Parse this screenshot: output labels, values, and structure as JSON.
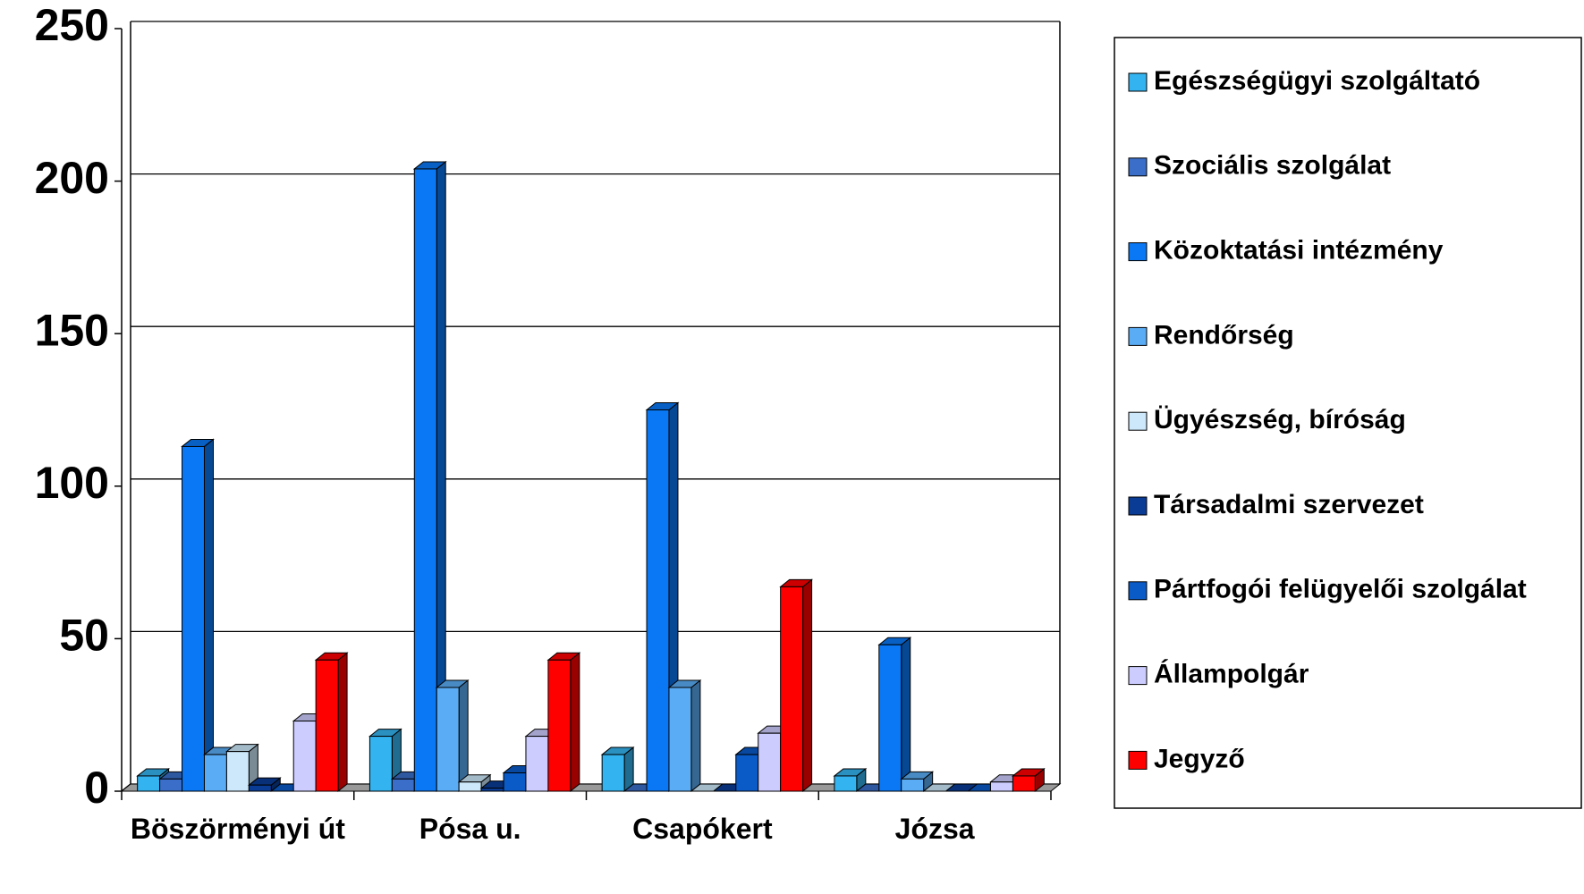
{
  "chart_data": {
    "type": "bar3d",
    "categories": [
      "Böszörményi út",
      "Pósa u.",
      "Csapókert",
      "Józsa"
    ],
    "series": [
      {
        "name": "Egészségügyi szolgáltató",
        "color": "#33b4f0",
        "values": [
          5,
          18,
          12,
          5
        ]
      },
      {
        "name": "Szociális szolgálat",
        "color": "#3a6ec8",
        "values": [
          4,
          4,
          0,
          0
        ]
      },
      {
        "name": "Közoktatási intézmény",
        "color": "#0a78f5",
        "values": [
          113,
          204,
          125,
          48
        ]
      },
      {
        "name": "Rendőrség",
        "color": "#5aacf5",
        "values": [
          12,
          34,
          34,
          4
        ]
      },
      {
        "name": "Ügyészség, bíróság",
        "color": "#cce8fa",
        "values": [
          13,
          3,
          0,
          0
        ]
      },
      {
        "name": "Társadalmi szervezet",
        "color": "#0a3c96",
        "values": [
          2,
          1,
          0,
          0
        ]
      },
      {
        "name": "Pártfogói felügyelői szolgálat",
        "color": "#0a5ac8",
        "values": [
          0,
          6,
          12,
          0
        ]
      },
      {
        "name": "Állampolgár",
        "color": "#ccccff",
        "values": [
          23,
          18,
          19,
          3
        ]
      },
      {
        "name": "Jegyző",
        "color": "#ff0000",
        "values": [
          43,
          43,
          67,
          5
        ]
      }
    ],
    "ylim": [
      0,
      250
    ],
    "yticks": [
      0,
      50,
      100,
      150,
      200,
      250
    ],
    "grid": true,
    "legend": "right"
  }
}
